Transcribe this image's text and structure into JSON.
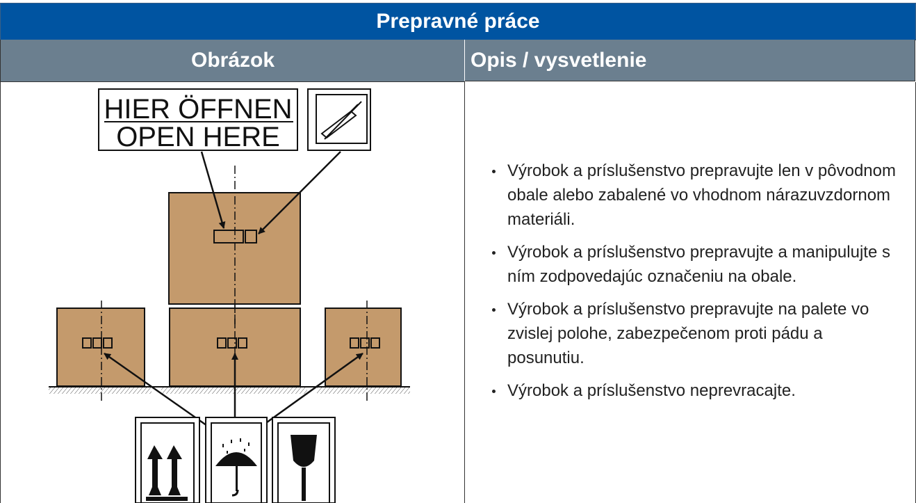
{
  "header": {
    "title": "Prepravné práce"
  },
  "table": {
    "columns": [
      "Obrázok",
      "Opis / vysvetlenie"
    ]
  },
  "image": {
    "label_lines": [
      "HIER ÖFFNEN",
      "OPEN HERE"
    ]
  },
  "bullets": [
    "Výrobok a príslušenstvo prepravujte len v pôvodnom obale alebo zabalené vo vhodnom nárazuvzdornom materiáli.",
    "Výrobok a príslušenstvo prepravujte a manipulujte s ním zodpovedajúc označeniu na obale.",
    "Výrobok a príslušenstvo prepravujte na palete vo zvislej polohe, zabezpečenom proti pádu a posunutiu.",
    "Výrobok a príslušenstvo neprevracajte."
  ]
}
